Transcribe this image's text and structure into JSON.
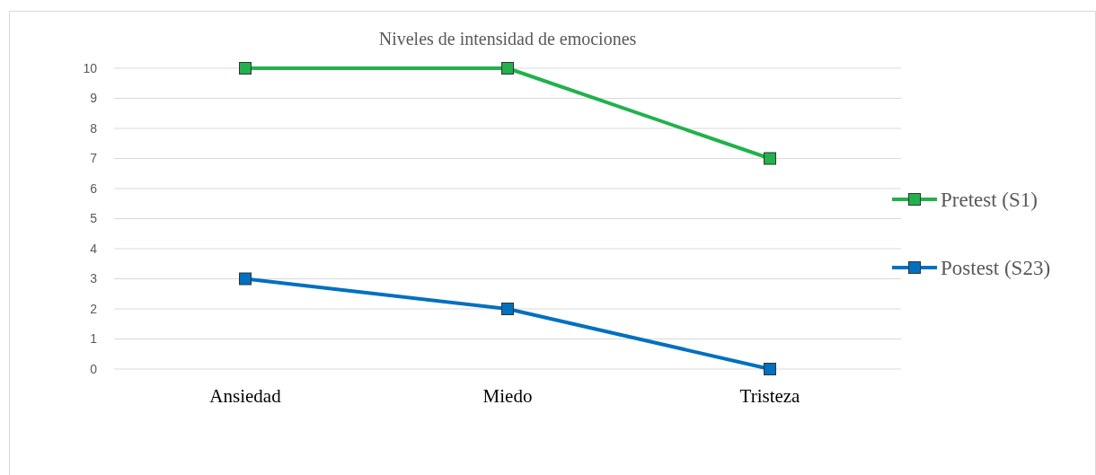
{
  "chart_data": {
    "type": "line",
    "title": "Niveles  de intensidad de emociones",
    "categories": [
      "Ansiedad",
      "Miedo",
      "Tristeza"
    ],
    "series": [
      {
        "name": "Pretest (S1)",
        "color": "#22b14c",
        "values": [
          10,
          10,
          7
        ]
      },
      {
        "name": "Postest (S23)",
        "color": "#0070c0",
        "values": [
          3,
          2,
          0
        ]
      }
    ],
    "ylim": [
      0,
      10
    ],
    "yticks": [
      0,
      1,
      2,
      3,
      4,
      5,
      6,
      7,
      8,
      9,
      10
    ],
    "grid": "y",
    "legend": "right",
    "marker": "square",
    "line_style": "solid"
  }
}
